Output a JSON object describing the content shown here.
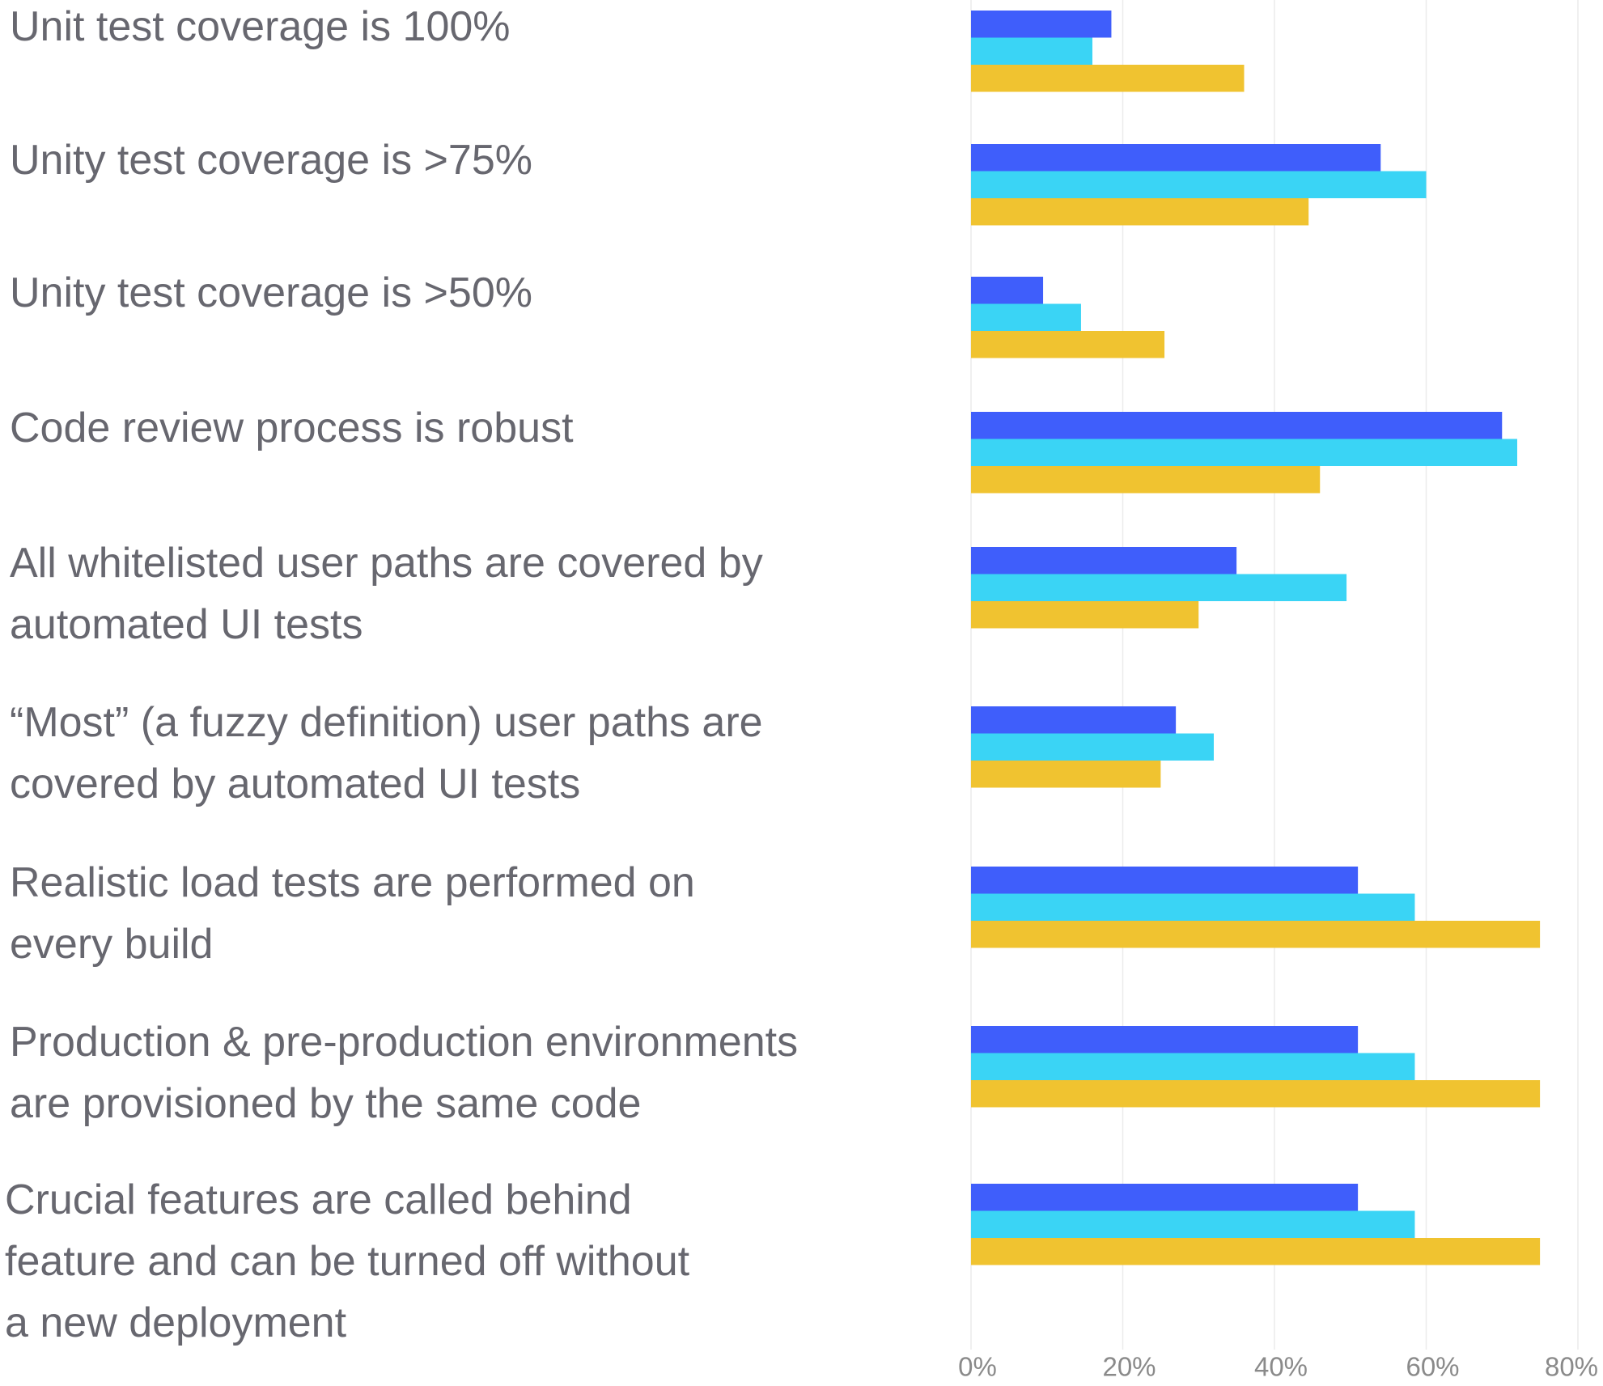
{
  "chart_data": {
    "type": "bar",
    "orientation": "horizontal",
    "categories": [
      "Unit test coverage is 100%",
      "Unity test coverage is >75%",
      "Unity test coverage is >50%",
      "Code review process is robust",
      "All whitelisted user paths are covered by\nautomated UI tests",
      "“Most” (a fuzzy definition) user paths are\ncovered by automated UI tests",
      "Realistic load tests are performed on\nevery build",
      "Production & pre-production environments\nare provisioned by the same code",
      "Crucial features are called behind\nfeature and can be turned off without\na new deployment"
    ],
    "series": [
      {
        "color": "#3f5efb",
        "values": [
          18.5,
          54,
          9.5,
          70,
          35,
          27,
          51,
          51,
          51
        ]
      },
      {
        "color": "#3ad4f5",
        "values": [
          16,
          60,
          14.5,
          72,
          49.5,
          32,
          58.5,
          58.5,
          58.5
        ]
      },
      {
        "color": "#f0c330",
        "values": [
          36,
          44.5,
          25.5,
          46,
          30,
          25,
          75,
          75,
          75
        ]
      }
    ],
    "xlim": [
      0,
      80
    ],
    "xticks": [
      {
        "value": 0,
        "label": "0%"
      },
      {
        "value": 20,
        "label": "20%"
      },
      {
        "value": 40,
        "label": "40%"
      },
      {
        "value": 60,
        "label": "60%"
      },
      {
        "value": 80,
        "label": "80%"
      }
    ],
    "grid": true
  }
}
